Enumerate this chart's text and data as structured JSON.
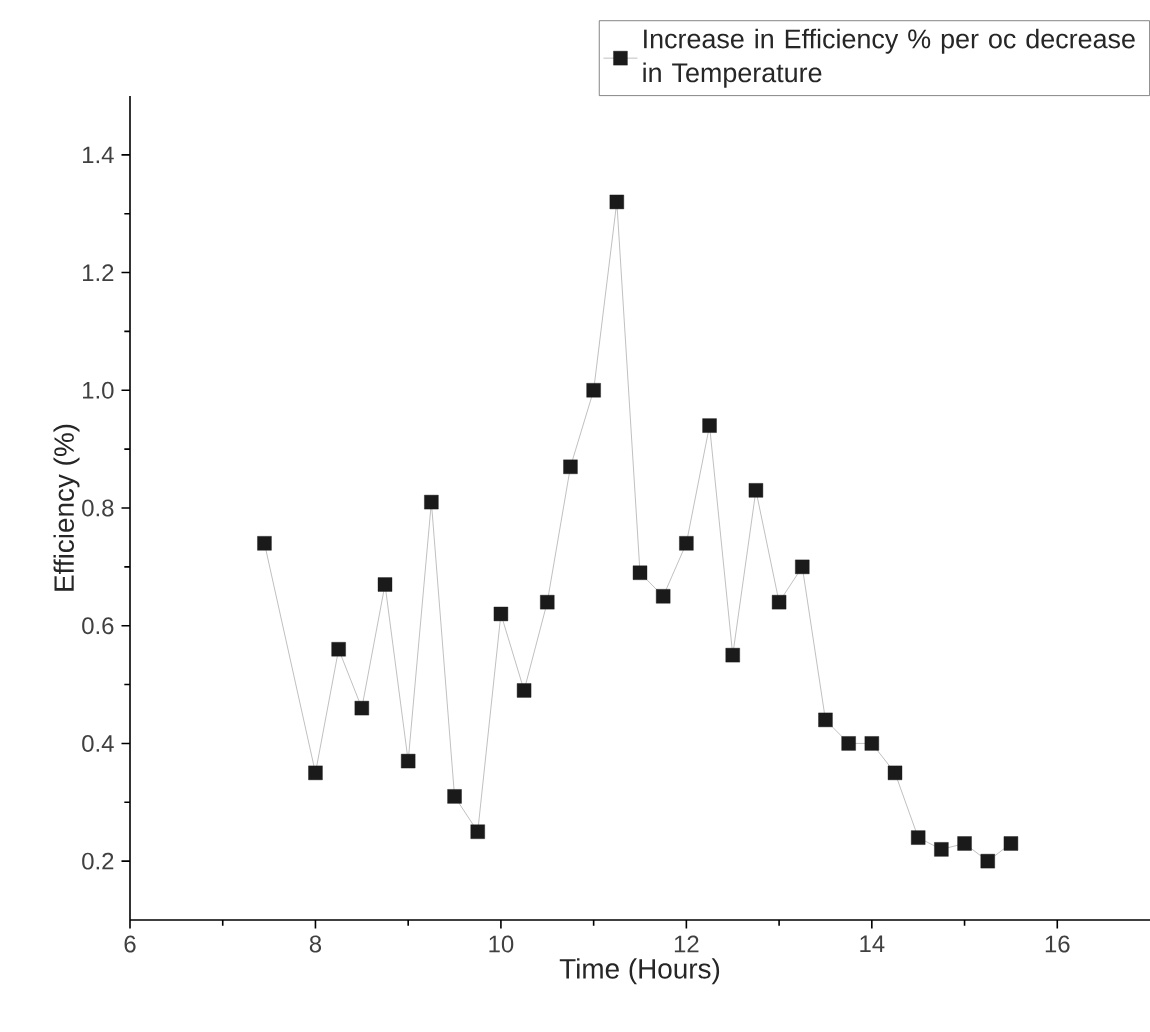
{
  "chart_data": {
    "type": "line",
    "xlabel": "Time (Hours)",
    "ylabel": "Efficiency (%)",
    "x": [
      7.45,
      8,
      8.25,
      8.5,
      8.75,
      9,
      9.25,
      9.5,
      9.75,
      10,
      10.25,
      10.5,
      10.75,
      11,
      11.25,
      11.5,
      11.75,
      12,
      12.25,
      12.5,
      12.75,
      13,
      13.25,
      13.5,
      13.75,
      14,
      14.25,
      14.5,
      14.75,
      15,
      15.25,
      15.5
    ],
    "series": [
      {
        "name": "Increase in Efficiency % per oc decrease in Temperature",
        "color": "#1a1a1a",
        "values": [
          0.74,
          0.35,
          0.56,
          0.46,
          0.67,
          0.37,
          0.81,
          0.31,
          0.25,
          0.62,
          0.49,
          0.64,
          0.87,
          1.0,
          1.32,
          0.69,
          0.65,
          0.74,
          0.94,
          0.55,
          0.83,
          0.64,
          0.7,
          0.44,
          0.4,
          0.4,
          0.35,
          0.24,
          0.22,
          0.23,
          0.2,
          0.23
        ]
      }
    ],
    "xlim": [
      6,
      17
    ],
    "ylim": [
      0.1,
      1.5
    ],
    "xticks": [
      6,
      8,
      10,
      12,
      14,
      16
    ],
    "yticks": [
      0.2,
      0.4,
      0.6,
      0.8,
      {
        "value": 1.0,
        "label": "1.0"
      },
      1.2,
      1.4
    ],
    "marker": "square",
    "line_style": "solid",
    "legend": "top right",
    "grid": false
  }
}
